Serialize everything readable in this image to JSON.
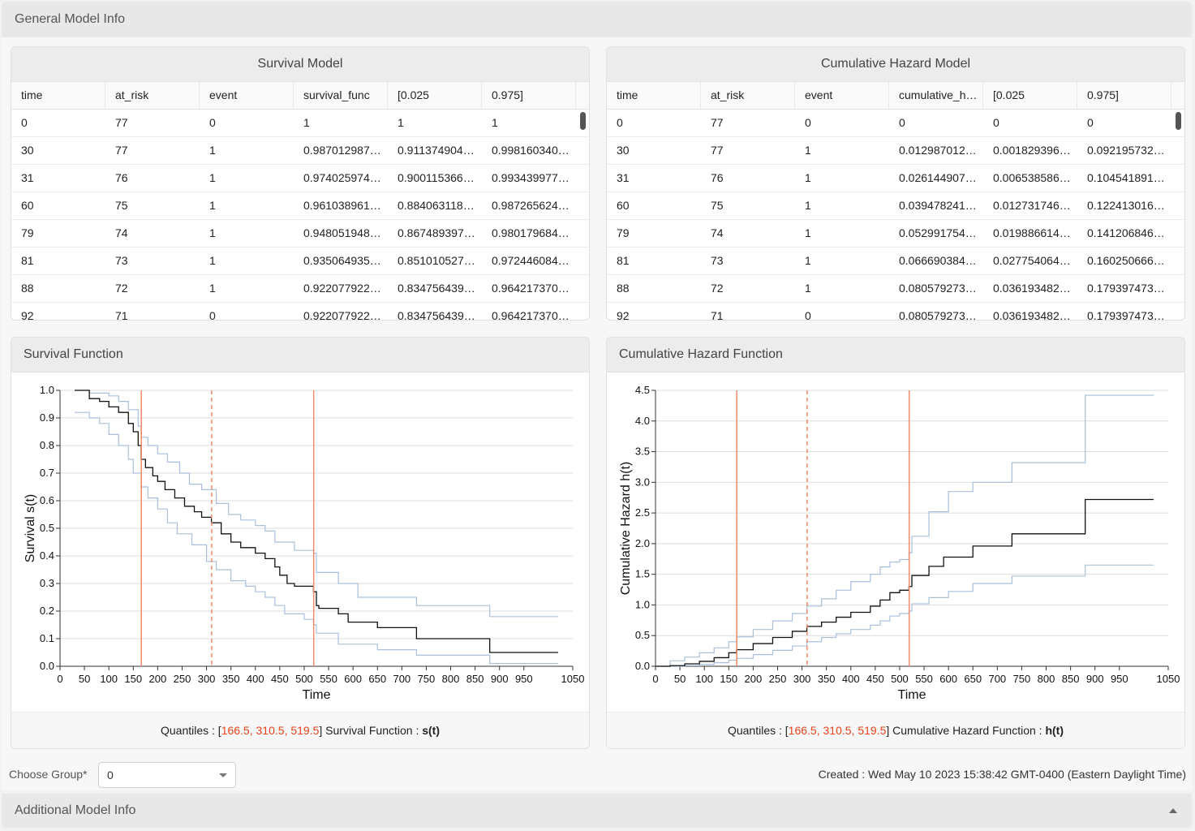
{
  "general_header": "General Model Info",
  "survival_table": {
    "title": "Survival Model",
    "columns": [
      "time",
      "at_risk",
      "event",
      "survival_func",
      "[0.025",
      "0.975]"
    ],
    "rows": [
      [
        "0",
        "77",
        "0",
        "1",
        "1",
        "1"
      ],
      [
        "30",
        "77",
        "1",
        "0.987012987…",
        "0.911374904…",
        "0.998160340…"
      ],
      [
        "31",
        "76",
        "1",
        "0.974025974…",
        "0.900115366…",
        "0.993439977…"
      ],
      [
        "60",
        "75",
        "1",
        "0.961038961…",
        "0.884063118…",
        "0.987265624…"
      ],
      [
        "79",
        "74",
        "1",
        "0.948051948…",
        "0.867489397…",
        "0.980179684…"
      ],
      [
        "81",
        "73",
        "1",
        "0.935064935…",
        "0.851010527…",
        "0.972446084…"
      ],
      [
        "88",
        "72",
        "1",
        "0.922077922…",
        "0.834756439…",
        "0.964217370…"
      ],
      [
        "92",
        "71",
        "0",
        "0.922077922…",
        "0.834756439…",
        "0.964217370…"
      ]
    ]
  },
  "hazard_table": {
    "title": "Cumulative Hazard Model",
    "columns": [
      "time",
      "at_risk",
      "event",
      "cumulative_h…",
      "[0.025",
      "0.975]"
    ],
    "rows": [
      [
        "0",
        "77",
        "0",
        "0",
        "0",
        "0"
      ],
      [
        "30",
        "77",
        "1",
        "0.012987012…",
        "0.001829396…",
        "0.092195732…"
      ],
      [
        "31",
        "76",
        "1",
        "0.026144907…",
        "0.006538586…",
        "0.104541891…"
      ],
      [
        "60",
        "75",
        "1",
        "0.039478241…",
        "0.012731746…",
        "0.122413016…"
      ],
      [
        "79",
        "74",
        "1",
        "0.052991754…",
        "0.019886614…",
        "0.141206846…"
      ],
      [
        "81",
        "73",
        "1",
        "0.066690384…",
        "0.027754064…",
        "0.160250666…"
      ],
      [
        "88",
        "72",
        "1",
        "0.080579273…",
        "0.036193482…",
        "0.179397473…"
      ],
      [
        "92",
        "71",
        "0",
        "0.080579273…",
        "0.036193482…",
        "0.179397473…"
      ]
    ]
  },
  "chart_data": [
    {
      "type": "line",
      "panel_title": "Survival Function",
      "xlabel": "Time",
      "ylabel": "Survival s(t)",
      "xlim": [
        0,
        1050
      ],
      "ylim": [
        0,
        1.0
      ],
      "xticks": [
        0,
        50,
        100,
        150,
        200,
        250,
        300,
        350,
        400,
        450,
        500,
        550,
        600,
        650,
        700,
        750,
        800,
        850,
        900,
        950,
        1050
      ],
      "yticks": [
        "0.0",
        "0.1",
        "0.2",
        "0.3",
        "0.4",
        "0.5",
        "0.6",
        "0.7",
        "0.8",
        "0.9",
        "1.0"
      ],
      "grid": "horizontal",
      "quantiles": [
        166.5,
        310.5,
        519.5
      ],
      "series": [
        {
          "role": "estimate",
          "color": "#111111",
          "x": [
            30,
            60,
            81,
            100,
            120,
            140,
            150,
            160,
            166,
            175,
            190,
            200,
            215,
            235,
            255,
            275,
            290,
            310,
            330,
            350,
            370,
            400,
            420,
            440,
            450,
            465,
            480,
            500,
            519,
            525,
            530,
            570,
            590,
            650,
            730,
            880,
            1020
          ],
          "y": [
            1.0,
            0.97,
            0.96,
            0.94,
            0.92,
            0.88,
            0.85,
            0.8,
            0.75,
            0.72,
            0.69,
            0.67,
            0.64,
            0.61,
            0.58,
            0.56,
            0.54,
            0.52,
            0.48,
            0.45,
            0.43,
            0.41,
            0.39,
            0.36,
            0.33,
            0.3,
            0.29,
            0.29,
            0.27,
            0.22,
            0.21,
            0.19,
            0.16,
            0.14,
            0.1,
            0.05,
            0.05
          ]
        },
        {
          "role": "upper",
          "color": "#a8c0dc",
          "x": [
            30,
            60,
            100,
            120,
            140,
            160,
            166,
            180,
            200,
            220,
            245,
            265,
            290,
            320,
            345,
            370,
            400,
            420,
            440,
            480,
            519,
            525,
            570,
            610,
            730,
            880,
            1020
          ],
          "y": [
            1.0,
            0.99,
            0.98,
            0.96,
            0.93,
            0.87,
            0.83,
            0.8,
            0.77,
            0.74,
            0.7,
            0.66,
            0.64,
            0.59,
            0.55,
            0.53,
            0.51,
            0.49,
            0.45,
            0.42,
            0.41,
            0.34,
            0.3,
            0.25,
            0.22,
            0.18,
            0.18
          ]
        },
        {
          "role": "lower",
          "color": "#a8c0dc",
          "x": [
            30,
            60,
            81,
            100,
            120,
            140,
            150,
            166,
            180,
            200,
            220,
            240,
            270,
            300,
            320,
            350,
            380,
            400,
            420,
            440,
            460,
            500,
            519,
            525,
            570,
            650,
            730,
            880,
            1020
          ],
          "y": [
            0.92,
            0.9,
            0.88,
            0.84,
            0.8,
            0.75,
            0.7,
            0.65,
            0.61,
            0.57,
            0.52,
            0.48,
            0.44,
            0.38,
            0.35,
            0.31,
            0.29,
            0.27,
            0.25,
            0.22,
            0.19,
            0.17,
            0.15,
            0.12,
            0.08,
            0.06,
            0.04,
            0.01,
            0.01
          ]
        }
      ]
    },
    {
      "type": "line",
      "panel_title": "Cumulative Hazard Function",
      "xlabel": "Time",
      "ylabel": "Cumulative Hazard h(t)",
      "xlim": [
        0,
        1050
      ],
      "ylim": [
        0,
        4.5
      ],
      "xticks": [
        0,
        50,
        100,
        150,
        200,
        250,
        300,
        350,
        400,
        450,
        500,
        550,
        600,
        650,
        700,
        750,
        800,
        850,
        900,
        950,
        1050
      ],
      "yticks": [
        "0.0",
        "0.5",
        "1.0",
        "1.5",
        "2.0",
        "2.5",
        "3.0",
        "3.5",
        "4.0",
        "4.5"
      ],
      "grid": "horizontal",
      "quantiles": [
        166.5,
        310.5,
        519.5
      ],
      "series": [
        {
          "role": "estimate",
          "color": "#111111",
          "x": [
            0,
            30,
            60,
            90,
            120,
            150,
            166,
            200,
            240,
            280,
            310,
            340,
            370,
            400,
            440,
            460,
            480,
            500,
            519,
            525,
            560,
            590,
            650,
            730,
            880,
            1020
          ],
          "y": [
            0,
            0.01,
            0.04,
            0.08,
            0.14,
            0.22,
            0.27,
            0.37,
            0.47,
            0.57,
            0.65,
            0.72,
            0.8,
            0.88,
            0.98,
            1.08,
            1.2,
            1.24,
            1.3,
            1.48,
            1.63,
            1.78,
            1.96,
            2.16,
            2.72,
            2.72
          ]
        },
        {
          "role": "upper",
          "color": "#a8c0dc",
          "x": [
            0,
            30,
            60,
            90,
            120,
            150,
            166,
            200,
            240,
            280,
            310,
            340,
            370,
            400,
            440,
            460,
            480,
            500,
            519,
            525,
            560,
            600,
            650,
            730,
            880,
            1020
          ],
          "y": [
            0,
            0.09,
            0.15,
            0.22,
            0.3,
            0.4,
            0.48,
            0.6,
            0.74,
            0.86,
            0.98,
            1.1,
            1.24,
            1.38,
            1.5,
            1.62,
            1.7,
            1.74,
            1.85,
            2.12,
            2.52,
            2.85,
            3.0,
            3.32,
            4.42,
            4.42
          ]
        },
        {
          "role": "lower",
          "color": "#a8c0dc",
          "x": [
            0,
            30,
            60,
            90,
            120,
            150,
            166,
            200,
            240,
            280,
            310,
            340,
            370,
            400,
            440,
            460,
            480,
            500,
            519,
            525,
            560,
            600,
            650,
            730,
            880,
            1020
          ],
          "y": [
            0,
            0.0,
            0.01,
            0.03,
            0.06,
            0.1,
            0.13,
            0.19,
            0.26,
            0.33,
            0.4,
            0.47,
            0.53,
            0.6,
            0.67,
            0.74,
            0.82,
            0.86,
            0.9,
            1.02,
            1.12,
            1.22,
            1.35,
            1.47,
            1.65,
            1.65
          ]
        }
      ]
    }
  ],
  "survival_footer": {
    "prefix": "Quantiles : [",
    "q1": "166.5",
    "q2": "310.5",
    "q3": "519.5",
    "suffix": "]  Survival Function : ",
    "fn": "s(t)"
  },
  "hazard_footer": {
    "prefix": "Quantiles : [",
    "q1": "166.5",
    "q2": "310.5",
    "q3": "519.5",
    "suffix": "]  Cumulative Hazard Function : ",
    "fn": "h(t)"
  },
  "group": {
    "label": "Choose Group*",
    "value": "0"
  },
  "created": "Created : Wed May 10 2023 15:38:42 GMT-0400 (Eastern Daylight Time)",
  "additional_header": "Additional Model Info",
  "colors": {
    "quantile_line": "#f08a6a",
    "quantile_text": "#e8431a",
    "ci_line": "#a8c0dc",
    "estimate_line": "#111111"
  }
}
